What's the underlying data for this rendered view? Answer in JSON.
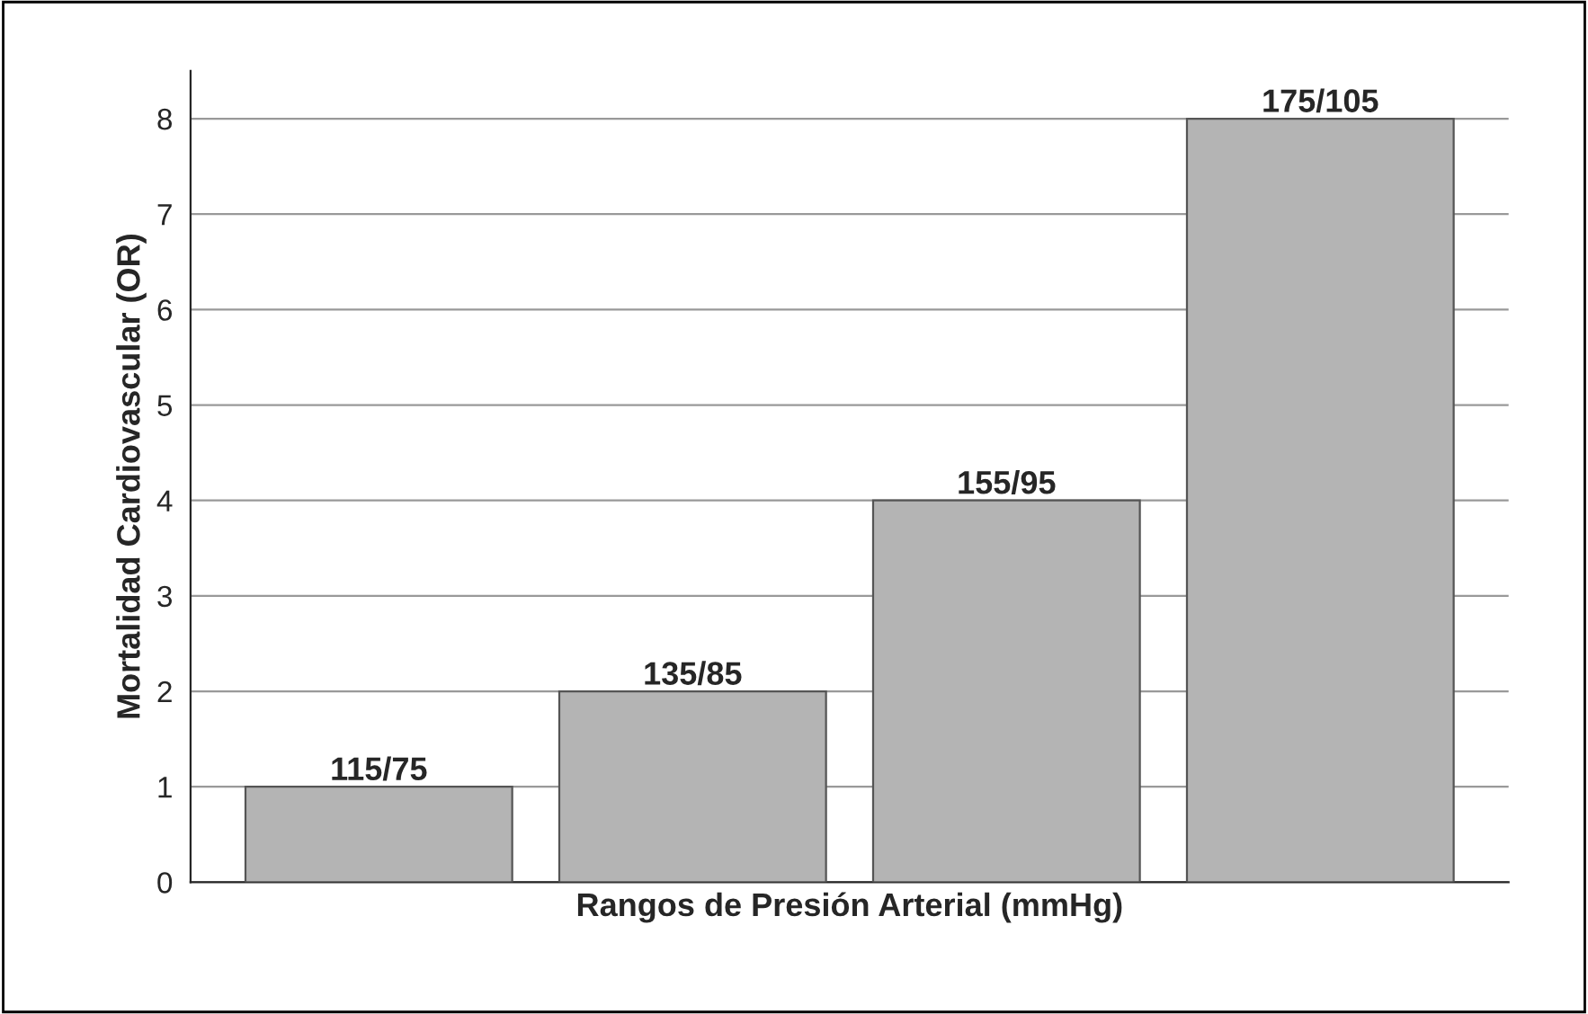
{
  "chart_data": {
    "type": "bar",
    "xlabel": "Rangos de Presión Arterial (mmHg)",
    "ylabel": "Mortalidad Cardiovascular (OR)",
    "categories": [
      "115/75",
      "135/85",
      "155/95",
      "175/105"
    ],
    "values": [
      1,
      2,
      4,
      8
    ],
    "color": "#b4b4b4",
    "ylim": [
      0,
      8.5
    ],
    "yticks": [
      0,
      1,
      2,
      3,
      4,
      5,
      6,
      7,
      8
    ],
    "grid": "y"
  }
}
